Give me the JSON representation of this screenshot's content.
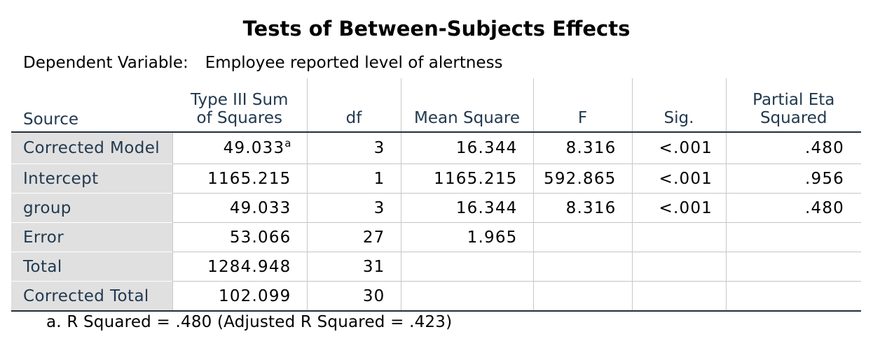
{
  "title": "Tests of Between-Subjects Effects",
  "dependent_variable": {
    "label": "Dependent Variable:",
    "value": "Employee reported level of alertness"
  },
  "table": {
    "headers": {
      "source": "Source",
      "ss_line1": "Type III Sum",
      "ss_line2": "of Squares",
      "df": "df",
      "ms": "Mean Square",
      "f": "F",
      "sig": "Sig.",
      "eta_line1": "Partial Eta",
      "eta_line2": "Squared"
    },
    "rows": [
      {
        "source": "Corrected Model",
        "ss": "49.033",
        "ss_note": "a",
        "df": "3",
        "ms": "16.344",
        "f": "8.316",
        "sig": "<.001",
        "eta": ".480"
      },
      {
        "source": "Intercept",
        "ss": "1165.215",
        "df": "1",
        "ms": "1165.215",
        "f": "592.865",
        "sig": "<.001",
        "eta": ".956"
      },
      {
        "source": "group",
        "ss": "49.033",
        "df": "3",
        "ms": "16.344",
        "f": "8.316",
        "sig": "<.001",
        "eta": ".480"
      },
      {
        "source": "Error",
        "ss": "53.066",
        "df": "27",
        "ms": "1.965",
        "f": "",
        "sig": "",
        "eta": ""
      },
      {
        "source": "Total",
        "ss": "1284.948",
        "df": "31",
        "ms": "",
        "f": "",
        "sig": "",
        "eta": ""
      },
      {
        "source": "Corrected Total",
        "ss": "102.099",
        "df": "30",
        "ms": "",
        "f": "",
        "sig": "",
        "eta": ""
      }
    ]
  },
  "footnote": "a. R Squared = .480 (Adjusted R Squared = .423)"
}
